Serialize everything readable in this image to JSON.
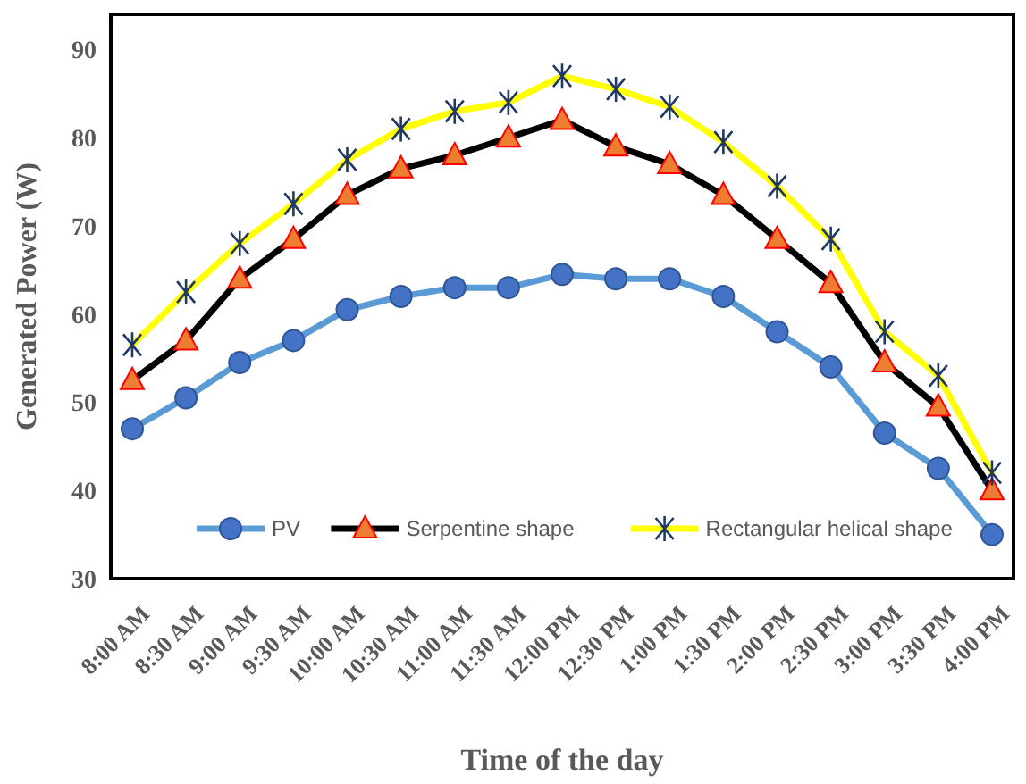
{
  "chart_data": {
    "type": "line",
    "xlabel": "Time of the day",
    "ylabel": "Generated Power (W)",
    "categories": [
      "8:00 AM",
      "8:30 AM",
      "9:00 AM",
      "9:30 AM",
      "10:00 AM",
      "10:30 AM",
      "11:00 AM",
      "11:30 AM",
      "12:00 PM",
      "12:30 PM",
      "1:00 PM",
      "1:30 PM",
      "2:00 PM",
      "2:30 PM",
      "3:00 PM",
      "3:30 PM",
      "4:00 PM"
    ],
    "series": [
      {
        "name": "PV",
        "color": "#5b9bd5",
        "marker": "circle",
        "values": [
          47,
          50.5,
          54.5,
          57,
          60.5,
          62,
          63,
          63,
          64.5,
          64,
          64,
          62,
          58,
          54,
          46.5,
          42.5,
          35
        ]
      },
      {
        "name": "Serpentine shape",
        "color": "#000000",
        "marker": "triangle",
        "values": [
          52.5,
          57,
          64,
          68.5,
          73.5,
          76.5,
          78,
          80,
          82,
          79,
          77,
          73.5,
          68.5,
          63.5,
          54.5,
          49.5,
          40
        ]
      },
      {
        "name": "Rectangular helical shape",
        "color": "#ffff00",
        "marker": "cross",
        "values": [
          56.5,
          62.5,
          68,
          72.5,
          77.5,
          81,
          83,
          84,
          87,
          85.5,
          83.5,
          79.5,
          74.5,
          68.5,
          58,
          53,
          42
        ]
      }
    ],
    "ylim": [
      30,
      94
    ],
    "yticks": [
      30,
      40,
      50,
      60,
      70,
      80,
      90
    ],
    "grid": false,
    "legend": "bottom"
  }
}
